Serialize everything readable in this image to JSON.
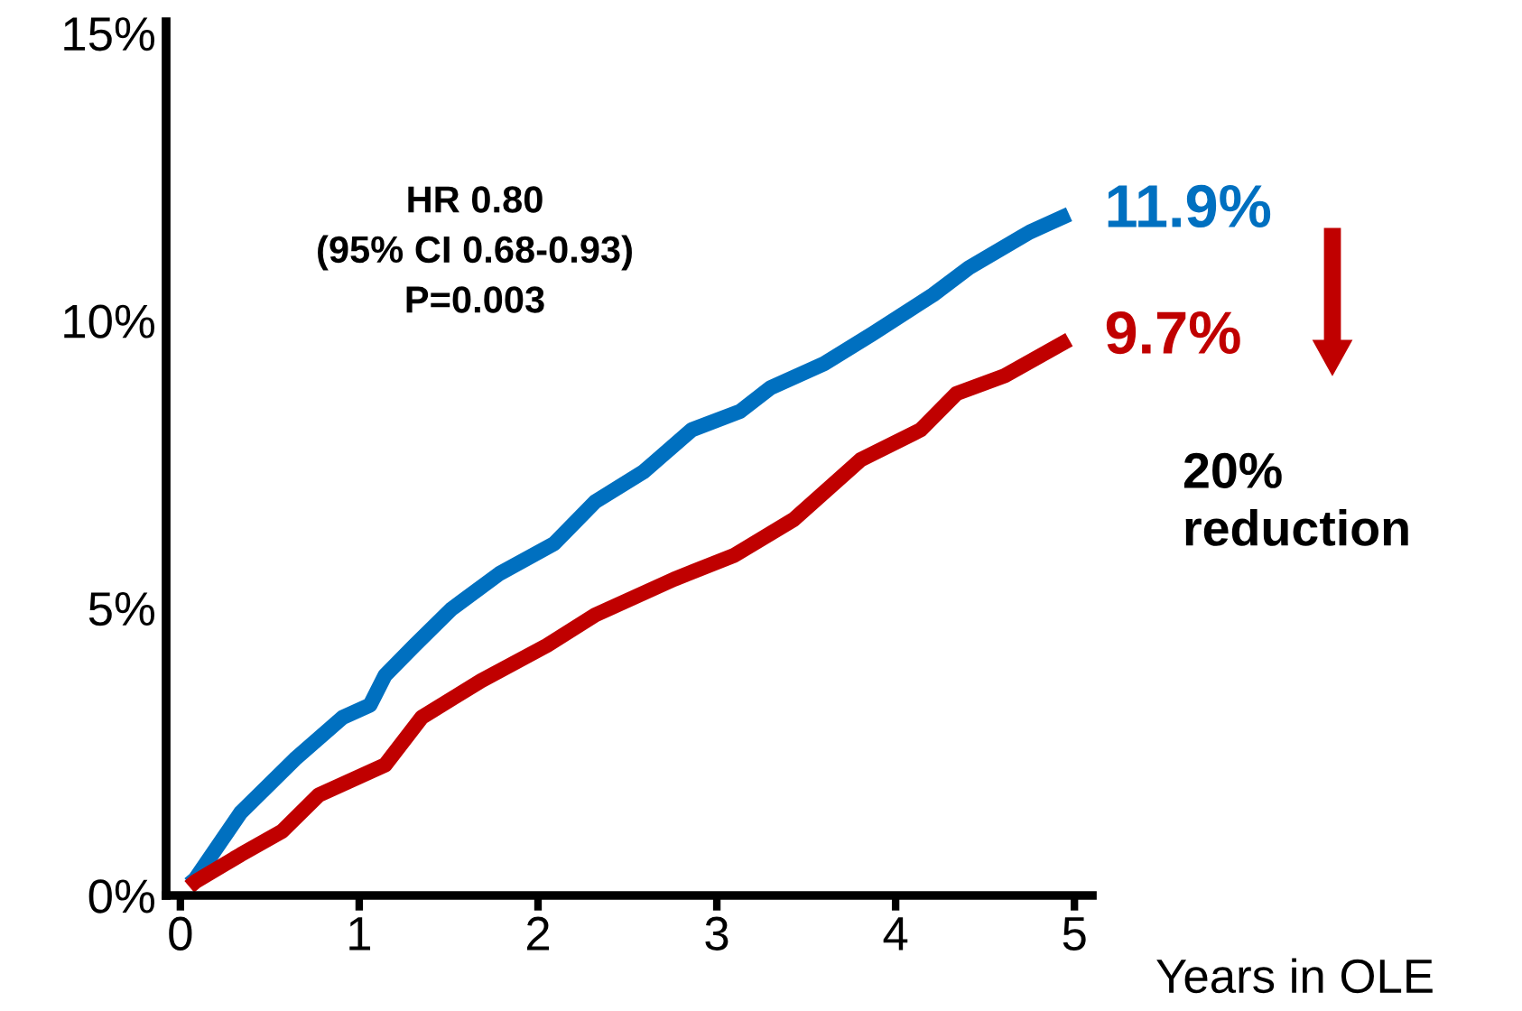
{
  "chart_data": {
    "type": "line",
    "xlabel": "Years in OLE",
    "xlim": [
      -0.08,
      5.1
    ],
    "xticks": [
      0,
      1,
      2,
      3,
      4,
      5
    ],
    "ylim": [
      0,
      15.2
    ],
    "yticks": [
      {
        "value": 0,
        "label": "0%"
      },
      {
        "value": 5,
        "label": "5%"
      },
      {
        "value": 10,
        "label": "10%"
      },
      {
        "value": 15,
        "label": "15%"
      }
    ],
    "grid": false,
    "legend": false,
    "series": [
      {
        "color": "#0070c0",
        "x": [
          0.05,
          0.084,
          0.337,
          0.64,
          0.909,
          1.06,
          1.145,
          1.31,
          1.515,
          1.785,
          2.09,
          2.32,
          2.59,
          2.86,
          3.13,
          3.3,
          3.6,
          3.87,
          4.21,
          4.41,
          4.75,
          4.97
        ],
        "values": [
          0.2,
          0.29,
          1.44,
          2.37,
          3.1,
          3.31,
          3.83,
          4.35,
          4.98,
          5.6,
          6.12,
          6.85,
          7.37,
          8.1,
          8.42,
          8.83,
          9.25,
          9.77,
          10.45,
          10.92,
          11.54,
          11.85
        ]
      },
      {
        "color": "#c00000",
        "x": [
          0.05,
          0.084,
          0.337,
          0.57,
          0.775,
          1.145,
          1.35,
          1.68,
          2.05,
          2.32,
          2.76,
          3.1,
          3.43,
          3.805,
          4.14,
          4.34,
          4.61,
          4.97
        ],
        "values": [
          0.15,
          0.24,
          0.71,
          1.12,
          1.75,
          2.27,
          3.1,
          3.73,
          4.35,
          4.88,
          5.5,
          5.92,
          6.54,
          7.58,
          8.1,
          8.73,
          9.04,
          9.67
        ]
      }
    ],
    "annotations": [
      "HR 0.80\n(95% CI 0.68-0.93)\nP=0.003",
      {
        "text": "11.9%",
        "x": 5,
        "y": 11.9
      },
      {
        "text": "9.7%",
        "x": 5,
        "y": 9.7
      },
      "20%\nreduction"
    ]
  }
}
